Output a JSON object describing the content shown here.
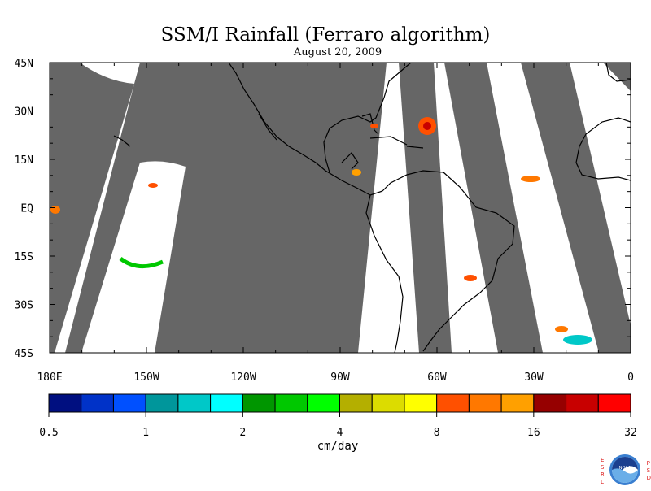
{
  "title": "SSM/I Rainfall (Ferraro algorithm)",
  "date": "August 20, 2009",
  "map": {
    "lon_range": [
      180,
      360
    ],
    "lat_range": [
      -45,
      45
    ],
    "x_ticks": [
      {
        "label": "180E",
        "lon": 180
      },
      {
        "label": "150W",
        "lon": 210
      },
      {
        "label": "120W",
        "lon": 240
      },
      {
        "label": "90W",
        "lon": 270
      },
      {
        "label": "60W",
        "lon": 300
      },
      {
        "label": "30W",
        "lon": 330
      },
      {
        "label": "0",
        "lon": 360
      }
    ],
    "y_ticks": [
      {
        "label": "45N",
        "lat": 45
      },
      {
        "label": "30N",
        "lat": 30
      },
      {
        "label": "15N",
        "lat": 15
      },
      {
        "label": "EQ",
        "lat": 0
      },
      {
        "label": "15S",
        "lat": -15
      },
      {
        "label": "30S",
        "lat": -30
      },
      {
        "label": "45S",
        "lat": -45
      }
    ],
    "nodata_color": "#666666",
    "coast_color": "#000000"
  },
  "colorbar": {
    "unit": "cm/day",
    "colors": [
      "#000f80",
      "#0032c8",
      "#0050ff",
      "#00969b",
      "#00c8c8",
      "#00ffff",
      "#009600",
      "#00c800",
      "#00ff00",
      "#b4af00",
      "#dcdc00",
      "#ffff00",
      "#ff5000",
      "#ff7800",
      "#ffa000",
      "#960000",
      "#c80000",
      "#ff0000"
    ],
    "labels": [
      {
        "text": "0.5",
        "index": 0
      },
      {
        "text": "1",
        "index": 3
      },
      {
        "text": "2",
        "index": 6
      },
      {
        "text": "4",
        "index": 9
      },
      {
        "text": "8",
        "index": 12
      },
      {
        "text": "16",
        "index": 15
      },
      {
        "text": "32",
        "index": 18
      }
    ]
  },
  "logo": {
    "left_letters": "ESRL",
    "right_letters": "PSD",
    "center_text": "NOAA"
  }
}
